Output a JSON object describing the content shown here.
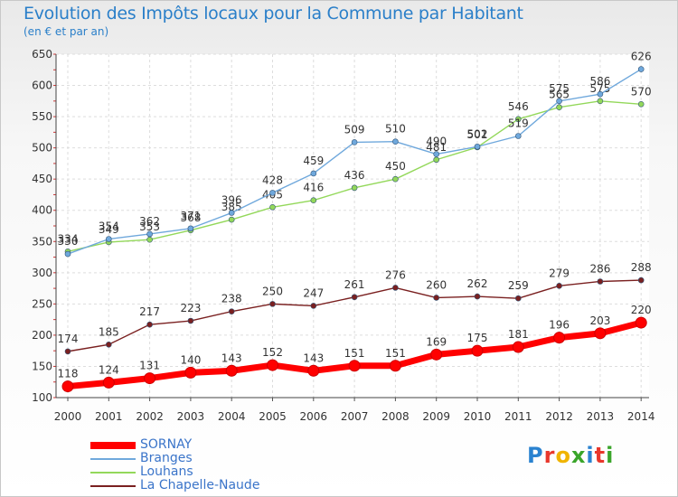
{
  "title": "Evolution des Impôts locaux pour la Commune par Habitant",
  "subtitle": "(en € et par an)",
  "logo": {
    "letters": [
      "P",
      "r",
      "o",
      "x",
      "i",
      "t",
      "i"
    ],
    "colors": [
      "#2a82d0",
      "#e8372c",
      "#f0b400",
      "#3aa52a",
      "#2a82d0",
      "#e8372c",
      "#3aa52a"
    ]
  },
  "chart_data": {
    "type": "line",
    "categories": [
      "2000",
      "2001",
      "2002",
      "2003",
      "2004",
      "2005",
      "2006",
      "2007",
      "2008",
      "2009",
      "2010",
      "2011",
      "2012",
      "2013",
      "2014"
    ],
    "y_ticks": [
      "100",
      "150",
      "200",
      "250",
      "300",
      "350",
      "400",
      "450",
      "500",
      "550",
      "600",
      "650"
    ],
    "ylim": [
      100,
      650
    ],
    "grid": true,
    "legend_position": "bottom-left",
    "series": [
      {
        "name": "SORNAY",
        "color": "#ff0000",
        "values": [
          118,
          124,
          131,
          140,
          143,
          152,
          143,
          151,
          151,
          169,
          175,
          181,
          196,
          203,
          220
        ]
      },
      {
        "name": "Branges",
        "color": "#6fa8dc",
        "values": [
          330,
          354,
          362,
          371,
          396,
          428,
          459,
          509,
          510,
          490,
          502,
          519,
          575,
          586,
          626
        ]
      },
      {
        "name": "Louhans",
        "color": "#93d85a",
        "values": [
          334,
          349,
          353,
          368,
          385,
          405,
          416,
          436,
          450,
          481,
          501,
          546,
          565,
          575,
          570
        ]
      },
      {
        "name": "La Chapelle-Naude",
        "color": "#7a2020",
        "values": [
          174,
          185,
          217,
          223,
          238,
          250,
          247,
          261,
          276,
          260,
          262,
          259,
          279,
          286,
          288
        ]
      }
    ]
  }
}
